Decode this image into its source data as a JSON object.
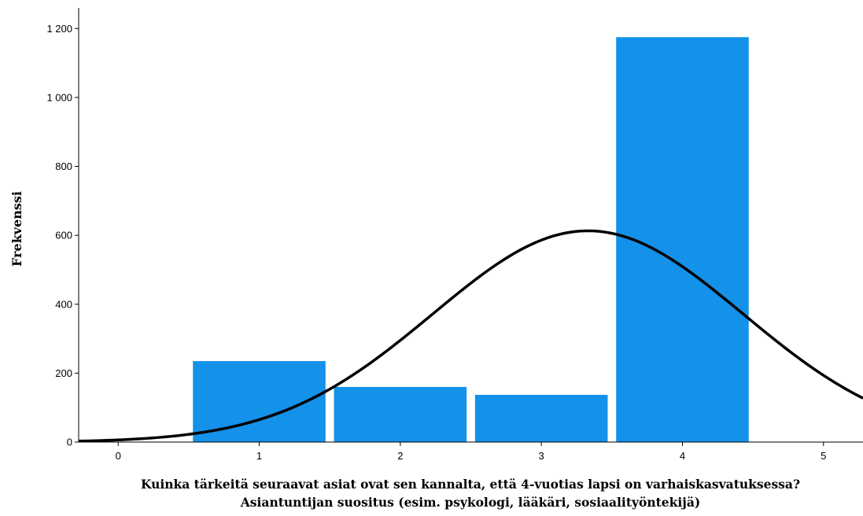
{
  "chart_data": {
    "type": "bar",
    "categories": [
      "1",
      "2",
      "3",
      "4"
    ],
    "x": [
      1,
      2,
      3,
      4
    ],
    "values": [
      235,
      160,
      137,
      1175
    ],
    "xlim": [
      -0.28,
      5.28
    ],
    "ylim": [
      0,
      1260
    ],
    "xticks": [
      "0",
      "1",
      "2",
      "3",
      "4",
      "5"
    ],
    "yticks": [
      "0",
      "200",
      "400",
      "600",
      "800",
      "1 000",
      "1 200"
    ],
    "xlabel": [
      "Kuinka tärkeitä seuraavat asiat ovat sen kannalta, että 4-vuotias lapsi on varhaiskasvatuksessa?",
      "Asiantuntijan suositus (esim. psykologi, lääkäri, sosiaalityöntekijä)"
    ],
    "ylabel": "Frekvenssi",
    "grid": false,
    "bar_color": "#1491e8",
    "normal_curve": {
      "peak": 613,
      "mean": 3.33,
      "sd": 1.1,
      "color": "#000000"
    }
  }
}
